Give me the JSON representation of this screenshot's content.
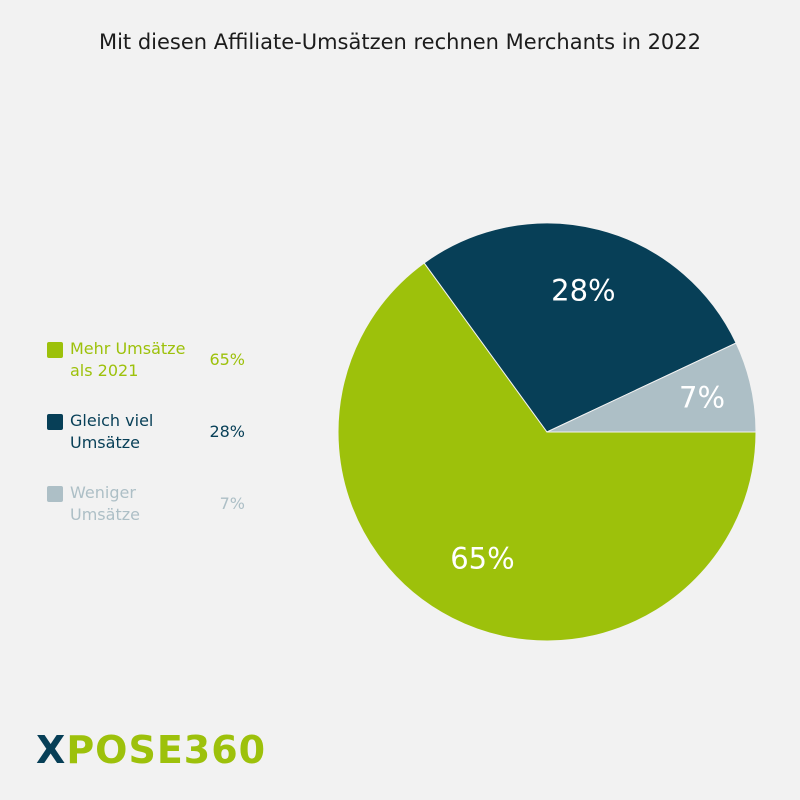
{
  "chart_data": {
    "type": "pie",
    "title": "Mit diesen Affiliate-Umsätzen rechnen Merchants in 2022",
    "slices": [
      {
        "label": "Mehr Umsätze als 2021",
        "label_line1": "Mehr Umsätze",
        "label_line2": "als 2021",
        "value": 65,
        "display": "65%",
        "color": "#9dc10b"
      },
      {
        "label": "Gleich viel Umsätze",
        "label_line1": "Gleich viel",
        "label_line2": "Umsätze",
        "value": 28,
        "display": "28%",
        "color": "#073f57"
      },
      {
        "label": "Weniger Umsätze",
        "label_line1": "Weniger",
        "label_line2": "Umsätze",
        "value": 7,
        "display": "7%",
        "color": "#adbfc6"
      }
    ],
    "legend_position": "left"
  },
  "brand": {
    "logo_x": "X",
    "logo_rest": "POSE360",
    "x_color": "#073f57",
    "rest_color": "#9dc10b"
  }
}
